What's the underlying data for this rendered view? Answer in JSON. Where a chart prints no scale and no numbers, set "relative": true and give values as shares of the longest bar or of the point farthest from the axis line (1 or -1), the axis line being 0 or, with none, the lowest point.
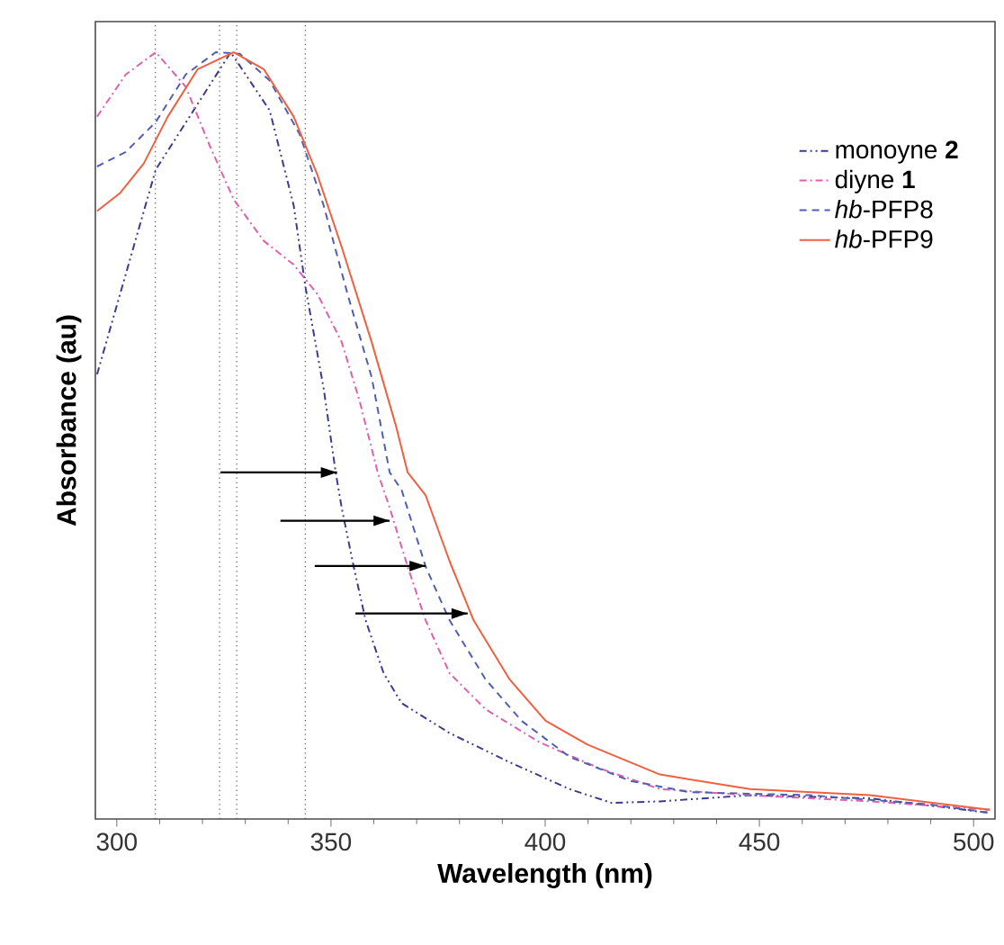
{
  "chart_data": {
    "type": "line",
    "relative": true,
    "xlabel": "Wavelength (nm)",
    "ylabel": "Absorbance (au)",
    "xlim": [
      295,
      505
    ],
    "xticks": [
      300,
      350,
      400,
      450,
      500
    ],
    "legend": "top right",
    "grid": false,
    "series": [
      {
        "name": "monoyne **2**",
        "color": "#3c3c8c",
        "line_style": "dashdotdotted",
        "x": [
          295.4,
          309.1,
          326.6,
          335.7,
          341.3,
          344.1,
          348.3,
          351.1,
          352.5,
          355.3,
          358.1,
          362.3,
          366.5,
          377.7,
          391.7,
          405.7,
          415.5,
          426.8,
          447.8,
          475.8,
          503.8
        ],
        "values": [
          0.58,
          0.847,
          1.0,
          0.924,
          0.8,
          0.692,
          0.561,
          0.452,
          0.406,
          0.329,
          0.259,
          0.19,
          0.151,
          0.112,
          0.074,
          0.039,
          0.021,
          0.023,
          0.031,
          0.027,
          0.008
        ]
      },
      {
        "name": "diyne **1**",
        "color": "#e060b0",
        "line_style": "dashdotted",
        "x": [
          295.4,
          302.1,
          309.1,
          316.1,
          321.7,
          327.3,
          334.3,
          341.3,
          346.9,
          352.5,
          356.7,
          360.9,
          363.7,
          367.9,
          372.1,
          377.7,
          386.1,
          398.7,
          412.7,
          426.8,
          447.8,
          475.8,
          503.8
        ],
        "values": [
          0.916,
          0.971,
          1.0,
          0.955,
          0.878,
          0.808,
          0.754,
          0.723,
          0.684,
          0.622,
          0.545,
          0.452,
          0.406,
          0.329,
          0.259,
          0.19,
          0.143,
          0.1,
          0.066,
          0.039,
          0.031,
          0.023,
          0.012
        ]
      },
      {
        "name": "*hb*-PFP8",
        "color": "#5060b0",
        "line_style": "dashed",
        "x": [
          295.4,
          302.1,
          309.1,
          316.1,
          323.1,
          328.7,
          335.7,
          342.7,
          348.3,
          353.9,
          359.5,
          363.7,
          366.5,
          372.1,
          377.7,
          386.1,
          394.5,
          405.7,
          419.7,
          433.7,
          461.8,
          489.8,
          503.8
        ],
        "values": [
          0.851,
          0.87,
          0.909,
          0.971,
          1.0,
          0.998,
          0.963,
          0.893,
          0.8,
          0.684,
          0.576,
          0.452,
          0.429,
          0.329,
          0.259,
          0.182,
          0.128,
          0.081,
          0.05,
          0.035,
          0.031,
          0.019,
          0.008
        ]
      },
      {
        "name": "*hb*-PFP9",
        "color": "#f06040",
        "line_style": "solid",
        "x": [
          295.4,
          300.7,
          306.3,
          311.9,
          318.9,
          327.3,
          334.3,
          341.3,
          346.9,
          352.5,
          359.5,
          365.1,
          367.9,
          372.1,
          377.7,
          383.3,
          391.7,
          400.1,
          409.9,
          426.8,
          447.8,
          475.8,
          503.8
        ],
        "values": [
          0.793,
          0.816,
          0.855,
          0.916,
          0.978,
          1.0,
          0.978,
          0.916,
          0.839,
          0.746,
          0.622,
          0.514,
          0.452,
          0.422,
          0.336,
          0.259,
          0.182,
          0.128,
          0.097,
          0.058,
          0.039,
          0.031,
          0.012
        ]
      },
      {
        "type": "line",
        "color": "#000000",
        "x": [
          324.2,
          351.4
        ],
        "values": [
          0.452,
          0.452
        ]
      },
      {
        "type": "line",
        "color": "#000000",
        "x": [
          338.2,
          363.7
        ],
        "values": [
          0.389,
          0.389
        ]
      },
      {
        "type": "line",
        "color": "#000000",
        "x": [
          346.2,
          372.1
        ],
        "values": [
          0.33,
          0.33
        ]
      },
      {
        "type": "line",
        "color": "#000000",
        "x": [
          355.7,
          381.9
        ],
        "values": [
          0.268,
          0.268
        ]
      }
    ],
    "ref_lines": [
      {
        "axis": "x",
        "value": 309,
        "color": "#555555",
        "line_style": "dotted"
      },
      {
        "axis": "x",
        "value": 324,
        "color": "#555555",
        "line_style": "dotted"
      },
      {
        "axis": "x",
        "value": 328,
        "color": "#555555",
        "line_style": "dotted"
      },
      {
        "axis": "x",
        "value": 344,
        "color": "#555555",
        "line_style": "dotted"
      }
    ]
  }
}
